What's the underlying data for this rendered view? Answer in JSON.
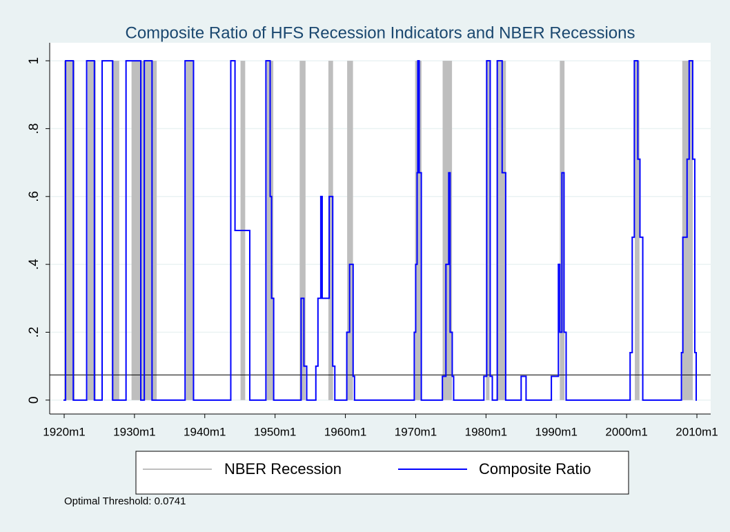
{
  "chart_data": {
    "type": "line",
    "step": true,
    "title": "Composite Ratio of HFS Recession Indicators and NBER Recessions",
    "note": "Optimal Threshold: 0.0741",
    "threshold": {
      "value": 0.0741,
      "color": "#000000"
    },
    "xlim": [
      1917.94,
      2011.96
    ],
    "ylim": [
      -0.041,
      1.053
    ],
    "xticks": [
      {
        "value": 1920,
        "label": "1920m1"
      },
      {
        "value": 1930,
        "label": "1930m1"
      },
      {
        "value": 1940,
        "label": "1940m1"
      },
      {
        "value": 1950,
        "label": "1950m1"
      },
      {
        "value": 1960,
        "label": "1960m1"
      },
      {
        "value": 1970,
        "label": "1970m1"
      },
      {
        "value": 1980,
        "label": "1980m1"
      },
      {
        "value": 1990,
        "label": "1990m1"
      },
      {
        "value": 2000,
        "label": "2000m1"
      },
      {
        "value": 2010,
        "label": "2010m1"
      }
    ],
    "yticks": [
      0,
      {
        "value": 0.2,
        "label": ".2"
      },
      {
        "value": 0.4,
        "label": ".4"
      },
      {
        "value": 0.6,
        "label": ".6"
      },
      {
        "value": 0.8,
        "label": ".8"
      },
      1
    ],
    "grid": true,
    "legend": "bottom",
    "recessions": {
      "name": "NBER Recession",
      "color": "#bebebe",
      "periods": [
        [
          1920.0,
          1921.5
        ],
        [
          1923.333,
          1924.5
        ],
        [
          1926.75,
          1927.833
        ],
        [
          1929.583,
          1933.167
        ],
        [
          1937.333,
          1938.417
        ],
        [
          1945.083,
          1945.75
        ],
        [
          1948.833,
          1949.75
        ],
        [
          1953.5,
          1954.333
        ],
        [
          1957.583,
          1958.25
        ],
        [
          1960.25,
          1961.083
        ],
        [
          1969.917,
          1970.833
        ],
        [
          1973.833,
          1975.167
        ],
        [
          1980.0,
          1980.5
        ],
        [
          1981.5,
          1982.833
        ],
        [
          1990.5,
          1991.167
        ],
        [
          2001.167,
          2001.833
        ],
        [
          2007.917,
          2009.417
        ]
      ]
    },
    "x": [
      1920.0,
      1920.2,
      1921.3,
      1923.2,
      1924.3,
      1925.4,
      1926.9,
      1928.8,
      1930.9,
      1931.4,
      1932.5,
      1937.2,
      1938.4,
      1943.7,
      1944.3,
      1946.4,
      1948.7,
      1949.3,
      1949.5,
      1949.8,
      1953.7,
      1954.1,
      1954.5,
      1955.8,
      1956.1,
      1956.5,
      1956.7,
      1957.7,
      1958.2,
      1958.5,
      1960.2,
      1960.6,
      1961.1,
      1961.3,
      1969.8,
      1970.0,
      1970.2,
      1970.3,
      1970.5,
      1970.8,
      1973.8,
      1974.3,
      1974.7,
      1974.9,
      1975.2,
      1975.4,
      1979.7,
      1980.1,
      1980.6,
      1980.9,
      1981.6,
      1982.3,
      1982.8,
      1985.0,
      1985.7,
      1989.3,
      1990.3,
      1990.5,
      1990.8,
      1991.1,
      1991.4,
      2000.5,
      2000.8,
      2001.1,
      2001.6,
      2001.9,
      2002.3,
      2007.8,
      2008.0,
      2008.6,
      2008.9,
      2009.4,
      2009.7,
      2009.9
    ],
    "series": [
      {
        "name": "Composite Ratio",
        "color": "#0000ff",
        "values": [
          0,
          1,
          0,
          1,
          0,
          1,
          0,
          1,
          0,
          1,
          0,
          1,
          0,
          1,
          0.5,
          0,
          1,
          0.6,
          0.3,
          0,
          0.3,
          0.1,
          0,
          0.1,
          0.3,
          0.6,
          0.3,
          0.6,
          0.1,
          0,
          0.2,
          0.4,
          0.07,
          0,
          0.2,
          0.4,
          0.67,
          1,
          0.67,
          0,
          0.07,
          0.4,
          0.67,
          0.2,
          0.07,
          0,
          0.07,
          1,
          0.07,
          0,
          1,
          0.67,
          0,
          0.07,
          0,
          0.07,
          0.4,
          0.2,
          0.67,
          0.2,
          0,
          0.14,
          0.48,
          1,
          0.71,
          0.48,
          0,
          0.14,
          0.48,
          0.71,
          1,
          0.71,
          0.14,
          0
        ]
      }
    ]
  }
}
